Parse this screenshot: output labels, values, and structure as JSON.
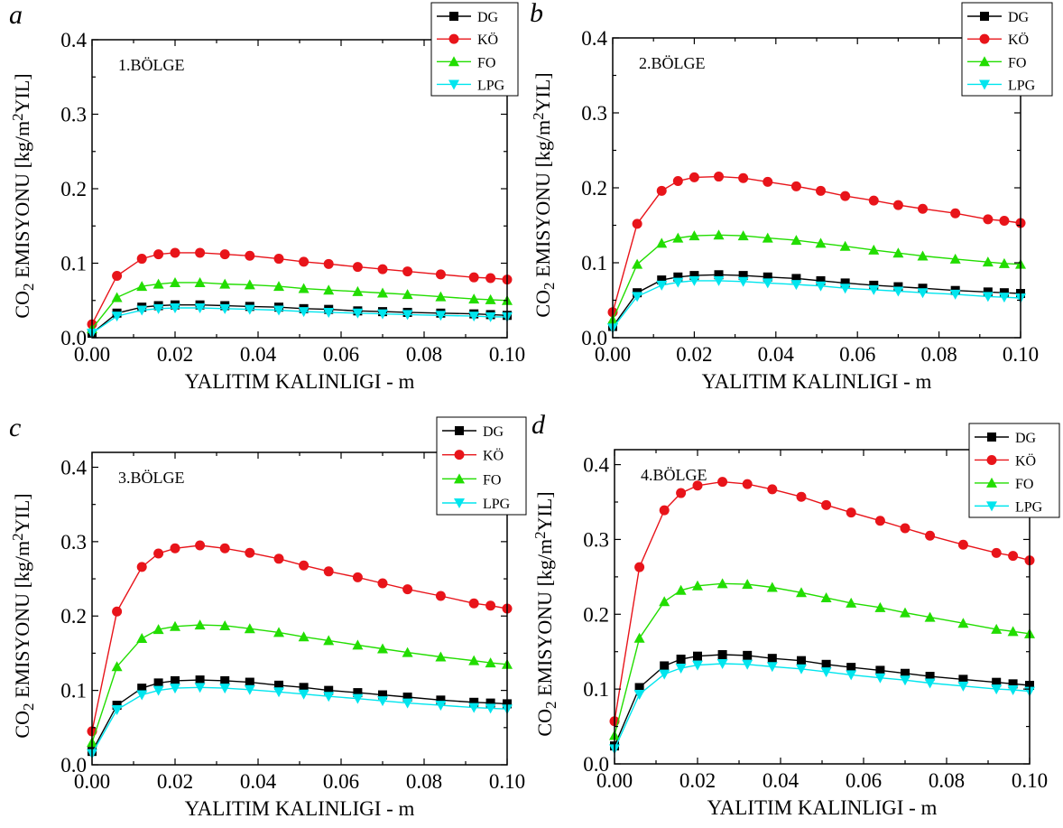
{
  "figure": {
    "x_axis_title": "YALITIM KALINLIGI - m",
    "y_axis_title": {
      "prefix": "CO",
      "sub": "2",
      "mid": " EMISYONU [kg/m",
      "sup": "2",
      "suffix": "YIL]"
    }
  },
  "colors": {
    "DG": "#000000",
    "KÖ": "#e8141a",
    "FO": "#22dd00",
    "LPG": "#00e5ee"
  },
  "chart_data": [
    {
      "panel": "a",
      "type": "line",
      "annotation": "1.BÖLGE",
      "xlim": [
        0,
        0.1
      ],
      "ylim": [
        0,
        0.4
      ],
      "xticks": [
        "0.00",
        "0.02",
        "0.04",
        "0.06",
        "0.08",
        "0.10"
      ],
      "yticks": [
        "0.0",
        "0.1",
        "0.2",
        "0.3",
        "0.4"
      ],
      "xlabel": "YALITIM KALINLIGI - m",
      "ylabel": "CO2 EMISYONU [kg/m2YIL]",
      "legend_position": "top-right",
      "x": [
        0,
        0.006,
        0.012,
        0.016,
        0.02,
        0.026,
        0.032,
        0.038,
        0.045,
        0.051,
        0.057,
        0.064,
        0.07,
        0.076,
        0.084,
        0.092,
        0.096,
        0.1
      ],
      "series": [
        {
          "name": "DG",
          "marker": "square",
          "values": [
            0.006,
            0.033,
            0.041,
            0.043,
            0.044,
            0.044,
            0.043,
            0.042,
            0.041,
            0.039,
            0.038,
            0.036,
            0.035,
            0.034,
            0.033,
            0.032,
            0.031,
            0.03
          ]
        },
        {
          "name": "KÖ",
          "marker": "circle",
          "values": [
            0.018,
            0.083,
            0.106,
            0.112,
            0.114,
            0.114,
            0.112,
            0.11,
            0.106,
            0.102,
            0.099,
            0.095,
            0.092,
            0.089,
            0.085,
            0.081,
            0.08,
            0.078
          ]
        },
        {
          "name": "FO",
          "marker": "triangle-up",
          "values": [
            0.012,
            0.054,
            0.069,
            0.072,
            0.074,
            0.074,
            0.072,
            0.071,
            0.069,
            0.066,
            0.064,
            0.062,
            0.06,
            0.058,
            0.055,
            0.052,
            0.051,
            0.05
          ]
        },
        {
          "name": "LPG",
          "marker": "triangle-down",
          "values": [
            0.006,
            0.029,
            0.037,
            0.039,
            0.04,
            0.04,
            0.039,
            0.038,
            0.037,
            0.035,
            0.034,
            0.033,
            0.032,
            0.031,
            0.03,
            0.029,
            0.028,
            0.028
          ]
        }
      ]
    },
    {
      "panel": "b",
      "type": "line",
      "annotation": "2.BÖLGE",
      "xlim": [
        0,
        0.1
      ],
      "ylim": [
        0,
        0.4
      ],
      "xticks": [
        "0.00",
        "0.02",
        "0.04",
        "0.06",
        "0.08",
        "0.10"
      ],
      "yticks": [
        "0.0",
        "0.1",
        "0.2",
        "0.3",
        "0.4"
      ],
      "xlabel": "YALITIM KALINLIGI - m",
      "ylabel": "CO2 EMISYONU [kg/m2YIL]",
      "legend_position": "top-right",
      "x": [
        0,
        0.006,
        0.012,
        0.016,
        0.02,
        0.026,
        0.032,
        0.038,
        0.045,
        0.051,
        0.057,
        0.064,
        0.07,
        0.076,
        0.084,
        0.092,
        0.096,
        0.1
      ],
      "series": [
        {
          "name": "DG",
          "marker": "square",
          "values": [
            0.015,
            0.06,
            0.077,
            0.081,
            0.083,
            0.084,
            0.083,
            0.081,
            0.079,
            0.076,
            0.073,
            0.07,
            0.068,
            0.066,
            0.063,
            0.061,
            0.06,
            0.059
          ]
        },
        {
          "name": "KÖ",
          "marker": "circle",
          "values": [
            0.034,
            0.152,
            0.196,
            0.209,
            0.214,
            0.215,
            0.213,
            0.208,
            0.202,
            0.196,
            0.189,
            0.183,
            0.177,
            0.172,
            0.166,
            0.158,
            0.156,
            0.153
          ]
        },
        {
          "name": "FO",
          "marker": "triangle-up",
          "values": [
            0.024,
            0.098,
            0.126,
            0.133,
            0.136,
            0.137,
            0.136,
            0.133,
            0.13,
            0.126,
            0.122,
            0.117,
            0.113,
            0.109,
            0.105,
            0.101,
            0.099,
            0.098
          ]
        },
        {
          "name": "LPG",
          "marker": "triangle-down",
          "values": [
            0.013,
            0.055,
            0.07,
            0.074,
            0.076,
            0.076,
            0.075,
            0.073,
            0.071,
            0.069,
            0.066,
            0.064,
            0.062,
            0.06,
            0.058,
            0.055,
            0.054,
            0.053
          ]
        }
      ]
    },
    {
      "panel": "c",
      "type": "line",
      "annotation": "3.BÖLGE",
      "xlim": [
        0,
        0.1
      ],
      "ylim": [
        0,
        0.42
      ],
      "xticks": [
        "0.00",
        "0.02",
        "0.04",
        "0.06",
        "0.08",
        "0.10"
      ],
      "yticks": [
        "0.0",
        "0.1",
        "0.2",
        "0.3",
        "0.4"
      ],
      "xlabel": "YALITIM KALINLIGI - m",
      "ylabel": "CO2 EMISYONU [kg/m2YIL]",
      "legend_position": "top-right",
      "x": [
        0,
        0.006,
        0.012,
        0.016,
        0.02,
        0.026,
        0.032,
        0.038,
        0.045,
        0.051,
        0.057,
        0.064,
        0.07,
        0.076,
        0.084,
        0.092,
        0.096,
        0.1
      ],
      "series": [
        {
          "name": "DG",
          "marker": "square",
          "values": [
            0.018,
            0.08,
            0.103,
            0.11,
            0.113,
            0.114,
            0.113,
            0.111,
            0.107,
            0.104,
            0.1,
            0.097,
            0.094,
            0.091,
            0.087,
            0.084,
            0.083,
            0.082
          ]
        },
        {
          "name": "KÖ",
          "marker": "circle",
          "values": [
            0.045,
            0.206,
            0.266,
            0.284,
            0.291,
            0.295,
            0.291,
            0.285,
            0.277,
            0.268,
            0.26,
            0.252,
            0.244,
            0.236,
            0.227,
            0.217,
            0.214,
            0.21
          ]
        },
        {
          "name": "FO",
          "marker": "triangle-up",
          "values": [
            0.03,
            0.132,
            0.17,
            0.182,
            0.186,
            0.188,
            0.187,
            0.183,
            0.178,
            0.172,
            0.167,
            0.161,
            0.156,
            0.151,
            0.145,
            0.14,
            0.137,
            0.135
          ]
        },
        {
          "name": "LPG",
          "marker": "triangle-down",
          "values": [
            0.015,
            0.074,
            0.094,
            0.1,
            0.103,
            0.104,
            0.103,
            0.101,
            0.098,
            0.095,
            0.092,
            0.089,
            0.086,
            0.083,
            0.08,
            0.077,
            0.076,
            0.075
          ]
        }
      ]
    },
    {
      "panel": "d",
      "type": "line",
      "annotation": "4.BÖLGE",
      "xlim": [
        0,
        0.1
      ],
      "ylim": [
        0,
        0.42
      ],
      "xticks": [
        "0.00",
        "0.02",
        "0.04",
        "0.06",
        "0.08",
        "0.10"
      ],
      "yticks": [
        "0.0",
        "0.1",
        "0.2",
        "0.3",
        "0.4"
      ],
      "xlabel": "YALITIM KALINLIGI - m",
      "ylabel": "CO2 EMISYONU [kg/m2YIL]",
      "legend_position": "top-right",
      "x": [
        0,
        0.006,
        0.012,
        0.016,
        0.02,
        0.026,
        0.032,
        0.038,
        0.045,
        0.051,
        0.057,
        0.064,
        0.07,
        0.076,
        0.084,
        0.092,
        0.096,
        0.1
      ],
      "series": [
        {
          "name": "DG",
          "marker": "square",
          "values": [
            0.024,
            0.102,
            0.131,
            0.14,
            0.144,
            0.146,
            0.145,
            0.141,
            0.138,
            0.133,
            0.129,
            0.125,
            0.121,
            0.117,
            0.113,
            0.109,
            0.107,
            0.105
          ]
        },
        {
          "name": "KÖ",
          "marker": "circle",
          "values": [
            0.057,
            0.263,
            0.339,
            0.362,
            0.372,
            0.377,
            0.374,
            0.367,
            0.357,
            0.346,
            0.336,
            0.325,
            0.315,
            0.305,
            0.293,
            0.282,
            0.278,
            0.272
          ]
        },
        {
          "name": "FO",
          "marker": "triangle-up",
          "values": [
            0.038,
            0.168,
            0.217,
            0.232,
            0.238,
            0.241,
            0.24,
            0.236,
            0.229,
            0.222,
            0.215,
            0.209,
            0.202,
            0.196,
            0.188,
            0.18,
            0.177,
            0.174
          ]
        },
        {
          "name": "LPG",
          "marker": "triangle-down",
          "values": [
            0.02,
            0.093,
            0.12,
            0.128,
            0.132,
            0.134,
            0.133,
            0.13,
            0.127,
            0.123,
            0.119,
            0.115,
            0.112,
            0.108,
            0.104,
            0.1,
            0.099,
            0.097
          ]
        }
      ]
    }
  ]
}
